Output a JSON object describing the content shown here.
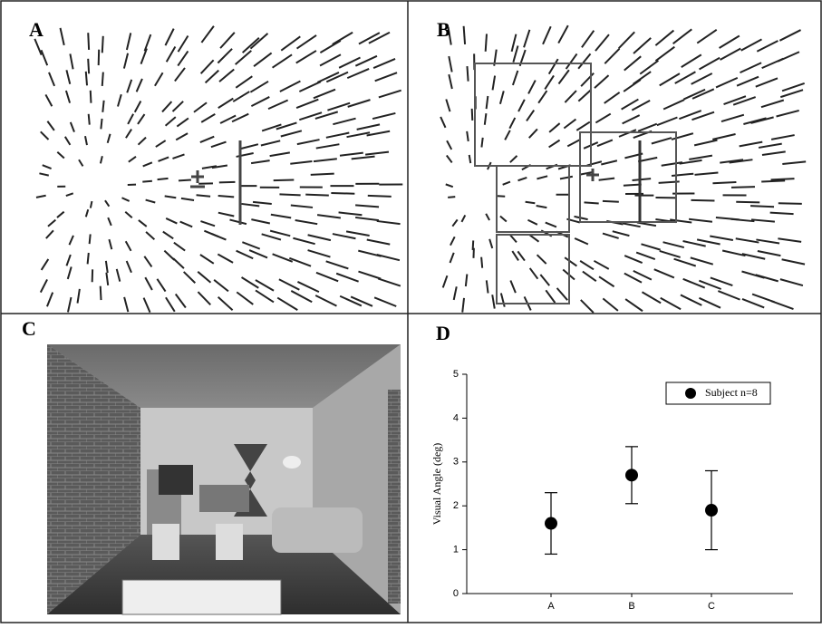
{
  "panel_labels": [
    "A",
    "B",
    "C",
    "D"
  ],
  "chart_data": {
    "type": "errorbar",
    "ylabel": "Visual Angle (deg)",
    "categories": [
      "A",
      "B",
      "C"
    ],
    "series": [
      {
        "name": "Subject n=8",
        "color": "#000000",
        "values": [
          1.6,
          2.7,
          1.9
        ],
        "errors": [
          0.7,
          0.65,
          0.9
        ]
      }
    ],
    "ylim": [
      0,
      5
    ],
    "yticks": [
      0,
      1,
      2,
      3,
      4,
      5
    ],
    "legend": "upper right"
  }
}
